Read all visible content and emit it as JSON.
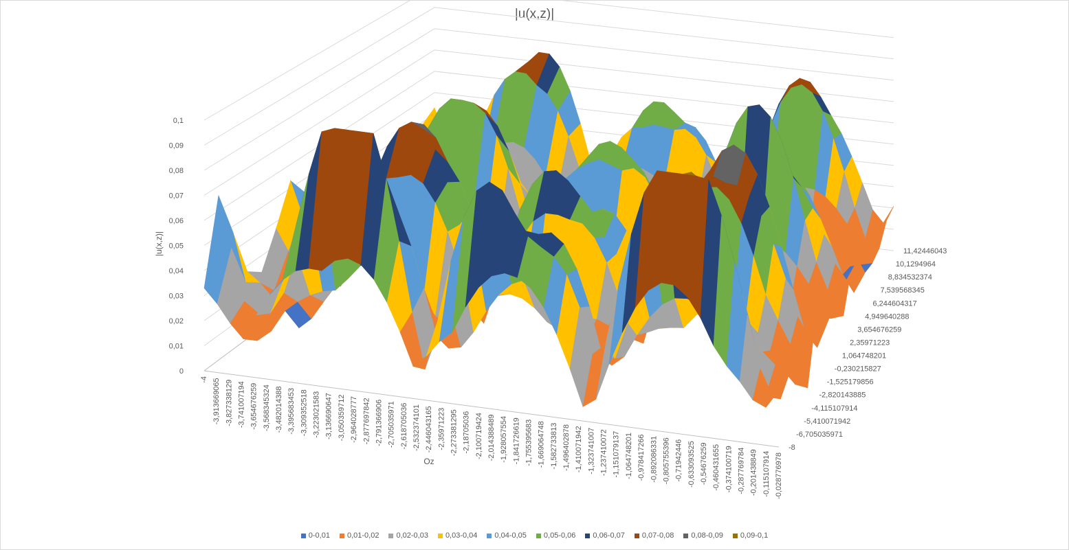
{
  "chart_data": {
    "type": "surface",
    "title": "|u(x,z)|",
    "zlabel": "|u(x,z)|",
    "xlabel": "Oz",
    "z_ticks": [
      "0",
      "0,01",
      "0,02",
      "0,03",
      "0,04",
      "0,05",
      "0,06",
      "0,07",
      "0,08",
      "0,09",
      "0,1"
    ],
    "zlim": [
      0,
      0.1
    ],
    "x_ticks": [
      "-4",
      "-3,913669065",
      "-3,827338129",
      "-3,741007194",
      "-3,654676259",
      "-3,568345324",
      "-3,482014388",
      "-3,395683453",
      "-3,309352518",
      "-3,223021583",
      "-3,136690647",
      "-3,050359712",
      "-2,964028777",
      "-2,877697842",
      "-2,791366906",
      "-2,705035971",
      "-2,618705036",
      "-2,532374101",
      "-2,446043165",
      "-2,35971223",
      "-2,273381295",
      "-2,18705036",
      "-2,100719424",
      "-2,014388489",
      "-1,928057554",
      "-1,841726619",
      "-1,755395683",
      "-1,669064748",
      "-1,582733813",
      "-1,496402878",
      "-1,410071942",
      "-1,323741007",
      "-1,237410072",
      "-1,151079137",
      "-1,064748201",
      "-0,978417266",
      "-0,892086331",
      "-0,805755396",
      "-0,71942446",
      "-0,633093525",
      "-0,54676259",
      "-0,460431655",
      "-0,374100719",
      "-0,287769784",
      "-0,201438849",
      "-0,115107914",
      "-0,028776978"
    ],
    "y_ticks": [
      "-8",
      "-6,705035971",
      "-5,410071942",
      "-4,115107914",
      "-2,820143885",
      "-1,525179856",
      "-0,230215827",
      "1,064748201",
      "2,35971223",
      "3,654676259",
      "4,949640288",
      "6,244604317",
      "7,539568345",
      "8,834532374",
      "10,1294964",
      "11,42446043"
    ],
    "legend": [
      {
        "label": "0-0,01",
        "color": "#4472c4"
      },
      {
        "label": "0,01-0,02",
        "color": "#ed7d31"
      },
      {
        "label": "0,02-0,03",
        "color": "#a5a5a5"
      },
      {
        "label": "0,03-0,04",
        "color": "#ffc000"
      },
      {
        "label": "0,04-0,05",
        "color": "#5b9bd5"
      },
      {
        "label": "0,05-0,06",
        "color": "#70ad47"
      },
      {
        "label": "0,06-0,07",
        "color": "#264478"
      },
      {
        "label": "0,07-0,08",
        "color": "#9e480e"
      },
      {
        "label": "0,08-0,09",
        "color": "#636363"
      },
      {
        "label": "0,09-0,1",
        "color": "#997300"
      }
    ],
    "grid": true,
    "legend_position": "bottom"
  }
}
